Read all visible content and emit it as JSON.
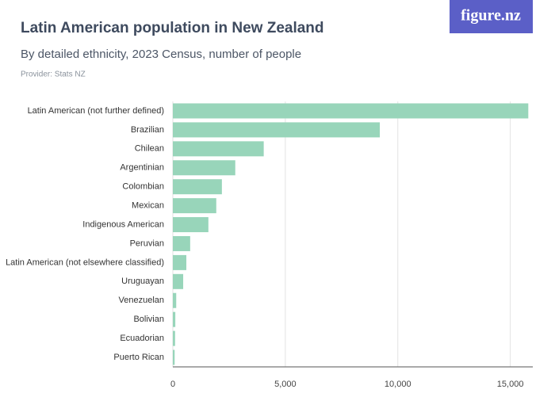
{
  "logo": "figure.nz",
  "chart_data": {
    "type": "hbar",
    "title": "Latin American population in New Zealand",
    "subtitle": "By detailed ethnicity, 2023 Census, number of people",
    "source": "Provider: Stats NZ",
    "categories": [
      "Latin American (not further defined)",
      "Brazilian",
      "Chilean",
      "Argentinian",
      "Colombian",
      "Mexican",
      "Indigenous American",
      "Peruvian",
      "Latin American (not elsewhere classified)",
      "Uruguayan",
      "Venezuelan",
      "Bolivian",
      "Ecuadorian",
      "Puerto Rican"
    ],
    "values": [
      15800,
      9200,
      4040,
      2775,
      2180,
      1930,
      1580,
      770,
      600,
      460,
      150,
      110,
      100,
      80
    ],
    "color": "#98d5ba",
    "xlim": [
      0,
      16000
    ],
    "xticks": [
      0,
      {
        "value": 5000,
        "label": "5,000"
      },
      {
        "value": 10000,
        "label": "10,000"
      },
      {
        "value": 15000,
        "label": "15,000"
      }
    ],
    "grid": true
  }
}
